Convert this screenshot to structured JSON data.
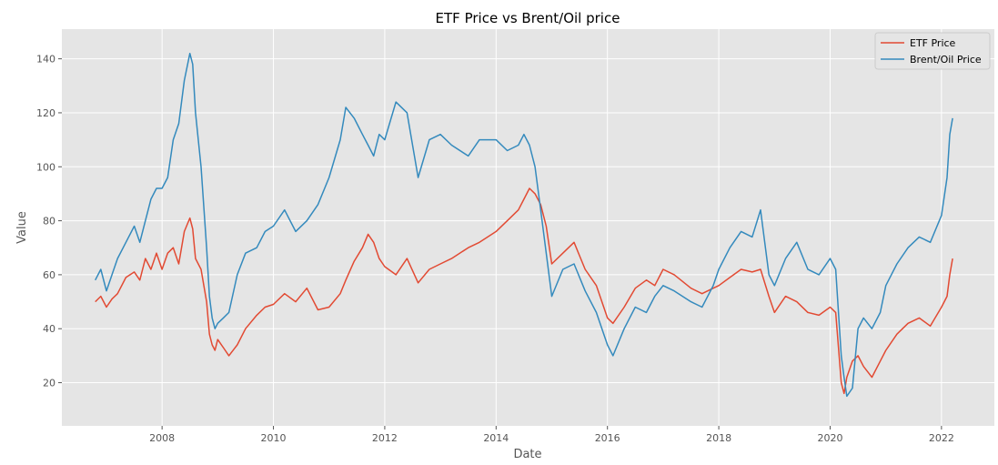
{
  "chart_data": {
    "type": "line",
    "title": "ETF Price vs Brent/Oil price",
    "xlabel": "Date",
    "ylabel": "Value",
    "xlim": [
      2006.2,
      2022.95
    ],
    "ylim": [
      4,
      151
    ],
    "xticks": [
      2008,
      2010,
      2012,
      2014,
      2016,
      2018,
      2020,
      2022
    ],
    "yticks": [
      20,
      40,
      60,
      80,
      100,
      120,
      140
    ],
    "grid": true,
    "legend_position": "top-right",
    "background": "#e5e5e5",
    "series": [
      {
        "name": "ETF Price",
        "color": "#e24a33",
        "x": [
          2006.8,
          2006.9,
          2007.0,
          2007.1,
          2007.2,
          2007.35,
          2007.5,
          2007.6,
          2007.7,
          2007.8,
          2007.9,
          2008.0,
          2008.1,
          2008.2,
          2008.3,
          2008.4,
          2008.5,
          2008.55,
          2008.6,
          2008.7,
          2008.8,
          2008.85,
          2008.9,
          2008.95,
          2009.0,
          2009.1,
          2009.2,
          2009.35,
          2009.5,
          2009.7,
          2009.85,
          2010.0,
          2010.2,
          2010.4,
          2010.6,
          2010.8,
          2011.0,
          2011.2,
          2011.3,
          2011.45,
          2011.6,
          2011.7,
          2011.8,
          2011.9,
          2012.0,
          2012.2,
          2012.4,
          2012.6,
          2012.8,
          2013.0,
          2013.2,
          2013.5,
          2013.7,
          2014.0,
          2014.2,
          2014.4,
          2014.5,
          2014.6,
          2014.7,
          2014.8,
          2014.9,
          2015.0,
          2015.2,
          2015.4,
          2015.6,
          2015.8,
          2016.0,
          2016.1,
          2016.3,
          2016.5,
          2016.7,
          2016.85,
          2017.0,
          2017.2,
          2017.5,
          2017.7,
          2017.9,
          2018.0,
          2018.2,
          2018.4,
          2018.6,
          2018.75,
          2018.9,
          2019.0,
          2019.2,
          2019.4,
          2019.6,
          2019.8,
          2020.0,
          2020.1,
          2020.2,
          2020.25,
          2020.3,
          2020.4,
          2020.5,
          2020.6,
          2020.75,
          2020.9,
          2021.0,
          2021.2,
          2021.4,
          2021.6,
          2021.8,
          2022.0,
          2022.1,
          2022.15,
          2022.2
        ],
        "y": [
          50,
          52,
          48,
          51,
          53,
          59,
          61,
          58,
          66,
          62,
          68,
          62,
          68,
          70,
          64,
          76,
          81,
          77,
          66,
          62,
          50,
          38,
          34,
          32,
          36,
          33,
          30,
          34,
          40,
          45,
          48,
          49,
          53,
          50,
          55,
          47,
          48,
          53,
          58,
          65,
          70,
          75,
          72,
          66,
          63,
          60,
          66,
          57,
          62,
          64,
          66,
          70,
          72,
          76,
          80,
          84,
          88,
          92,
          90,
          86,
          78,
          64,
          68,
          72,
          62,
          56,
          44,
          42,
          48,
          55,
          58,
          56,
          62,
          60,
          55,
          53,
          55,
          56,
          59,
          62,
          61,
          62,
          52,
          46,
          52,
          50,
          46,
          45,
          48,
          46,
          20,
          16,
          22,
          28,
          30,
          26,
          22,
          28,
          32,
          38,
          42,
          44,
          41,
          48,
          52,
          60,
          66
        ]
      },
      {
        "name": "Brent/Oil Price",
        "color": "#348abd",
        "x": [
          2006.8,
          2006.9,
          2007.0,
          2007.1,
          2007.2,
          2007.35,
          2007.5,
          2007.6,
          2007.7,
          2007.8,
          2007.9,
          2008.0,
          2008.1,
          2008.2,
          2008.3,
          2008.4,
          2008.5,
          2008.55,
          2008.6,
          2008.7,
          2008.8,
          2008.85,
          2008.9,
          2008.95,
          2009.0,
          2009.1,
          2009.2,
          2009.35,
          2009.5,
          2009.7,
          2009.85,
          2010.0,
          2010.2,
          2010.4,
          2010.6,
          2010.8,
          2011.0,
          2011.2,
          2011.3,
          2011.45,
          2011.6,
          2011.7,
          2011.8,
          2011.9,
          2012.0,
          2012.2,
          2012.4,
          2012.6,
          2012.8,
          2013.0,
          2013.2,
          2013.5,
          2013.7,
          2014.0,
          2014.2,
          2014.4,
          2014.5,
          2014.6,
          2014.7,
          2014.8,
          2014.9,
          2015.0,
          2015.2,
          2015.4,
          2015.6,
          2015.8,
          2016.0,
          2016.1,
          2016.3,
          2016.5,
          2016.7,
          2016.85,
          2017.0,
          2017.2,
          2017.5,
          2017.7,
          2017.9,
          2018.0,
          2018.2,
          2018.4,
          2018.6,
          2018.75,
          2018.9,
          2019.0,
          2019.2,
          2019.4,
          2019.6,
          2019.8,
          2020.0,
          2020.1,
          2020.2,
          2020.25,
          2020.3,
          2020.4,
          2020.5,
          2020.6,
          2020.75,
          2020.9,
          2021.0,
          2021.2,
          2021.4,
          2021.6,
          2021.8,
          2022.0,
          2022.1,
          2022.15,
          2022.2
        ],
        "y": [
          58,
          62,
          54,
          60,
          66,
          72,
          78,
          72,
          80,
          88,
          92,
          92,
          96,
          110,
          116,
          132,
          142,
          138,
          120,
          100,
          70,
          52,
          44,
          40,
          42,
          44,
          46,
          60,
          68,
          70,
          76,
          78,
          84,
          76,
          80,
          86,
          96,
          110,
          122,
          118,
          112,
          108,
          104,
          112,
          110,
          124,
          120,
          96,
          110,
          112,
          108,
          104,
          110,
          110,
          106,
          108,
          112,
          108,
          100,
          84,
          68,
          52,
          62,
          64,
          54,
          46,
          34,
          30,
          40,
          48,
          46,
          52,
          56,
          54,
          50,
          48,
          56,
          62,
          70,
          76,
          74,
          84,
          60,
          56,
          66,
          72,
          62,
          60,
          66,
          62,
          30,
          22,
          15,
          18,
          40,
          44,
          40,
          46,
          56,
          64,
          70,
          74,
          72,
          82,
          96,
          112,
          118
        ]
      }
    ]
  }
}
